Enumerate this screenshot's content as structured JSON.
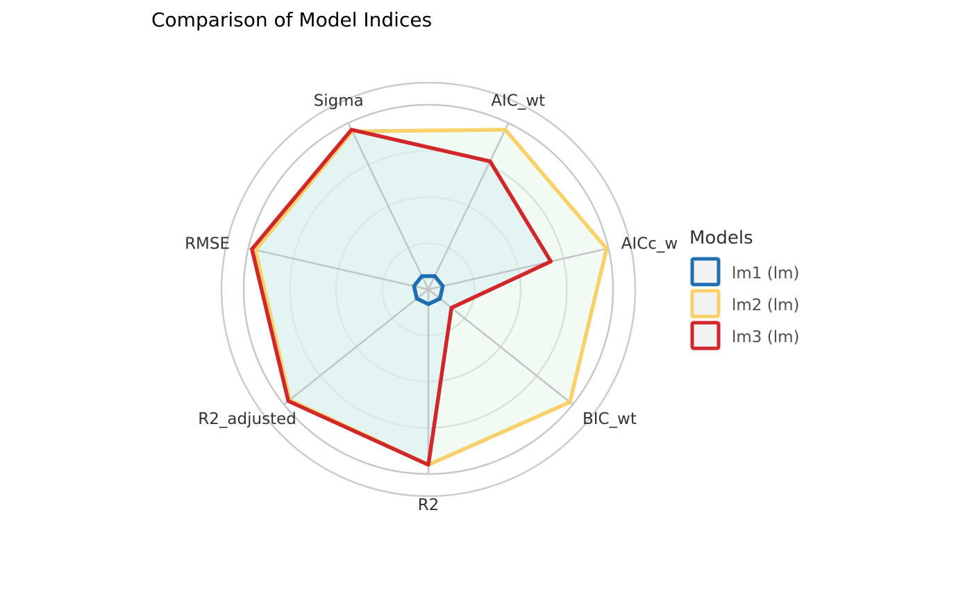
{
  "chart_data": {
    "type": "radar",
    "title": "Comparison of Model Indices",
    "axes": [
      "Sigma",
      "AIC_wt",
      "AICc_w",
      "BIC_wt",
      "R2",
      "R2_adjusted",
      "RMSE"
    ],
    "range": [
      0,
      1
    ],
    "rings": [
      0.25,
      0.5,
      0.75,
      1.0,
      1.12
    ],
    "grid": true,
    "legend": {
      "title": "Models",
      "placement": "right"
    },
    "series": [
      {
        "name": "lm1 (lm)",
        "color": "#1f6fb0",
        "values": [
          0.08,
          0.08,
          0.08,
          0.08,
          0.08,
          0.08,
          0.08
        ]
      },
      {
        "name": "lm2 (lm)",
        "color": "#f9d16a",
        "fill": "#e6f6ea",
        "values": [
          0.95,
          0.96,
          0.99,
          0.98,
          0.95,
          0.96,
          0.96
        ]
      },
      {
        "name": "lm3 (lm)",
        "color": "#d0282a",
        "fill": "#d9eef0",
        "values": [
          0.96,
          0.77,
          0.68,
          0.16,
          0.95,
          0.97,
          0.98
        ]
      }
    ]
  }
}
